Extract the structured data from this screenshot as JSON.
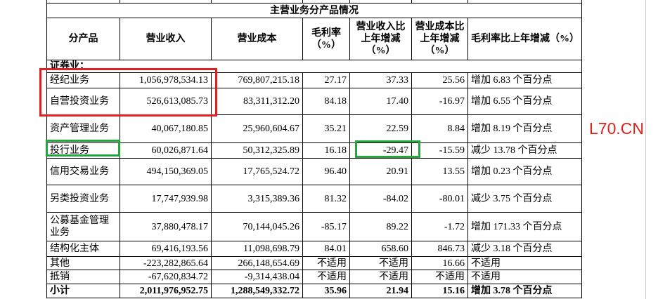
{
  "table": {
    "title": "主营业务分产品情况",
    "header": [
      "分产品",
      "营业收入",
      "营业成本",
      "毛利率（%）",
      "营业收入比上年增减（%）",
      "营业成本比上年增减（%）",
      "毛利率比上年增减（%）"
    ],
    "section": "证券业：",
    "rows": [
      [
        "经纪业务",
        "1,056,978,534.13",
        "769,807,215.18",
        "27.17",
        "37.33",
        "25.56",
        "增加 6.83 个百分点"
      ],
      [
        "自营投资业务",
        "526,613,085.73",
        "83,311,312.20",
        "84.18",
        "17.40",
        "-16.97",
        "增加 6.55 个百分点"
      ],
      [
        "资产管理业务",
        "40,067,180.85",
        "25,960,604.67",
        "35.21",
        "22.59",
        "8.84",
        "增加 8.19 个百分点"
      ],
      [
        "投行业务",
        "60,026,871.64",
        "50,312,325.89",
        "16.18",
        "-29.47",
        "-15.59",
        "减少 13.78 个百分点"
      ],
      [
        "信用交易业务",
        "494,150,369.05",
        "17,765,524.72",
        "96.40",
        "20.91",
        "13.55",
        "增加 0.23 个百分点"
      ],
      [
        "另类投资业务",
        "17,747,939.98",
        "3,315,389.36",
        "81.32",
        "-84.02",
        "-80.01",
        "减少 3.75 个百分点"
      ],
      [
        "公募基金管理业务",
        "37,880,478.17",
        "70,144,045.26",
        "-85.17",
        "89.22",
        "-1.72",
        "增加 171.33 个百分点"
      ],
      [
        "结构化主体",
        "69,416,193.56",
        "11,098,698.79",
        "84.01",
        "658.60",
        "846.73",
        "减少 3.18 个百分点"
      ],
      [
        "其他",
        "-223,282,865.64",
        "266,148,654.69",
        "不适用",
        "不适用",
        "16.66",
        "不适用"
      ],
      [
        "抵销",
        "-67,620,834.72",
        "-9,314,438.04",
        "不适用",
        "不适用",
        "不适用",
        "不适用"
      ],
      [
        "小计",
        "2,011,976,952.75",
        "1,288,549,332.72",
        "35.96",
        "21.94",
        "15.16",
        "增加 3.78 个百分点"
      ]
    ]
  },
  "watermark": "L70.CN"
}
